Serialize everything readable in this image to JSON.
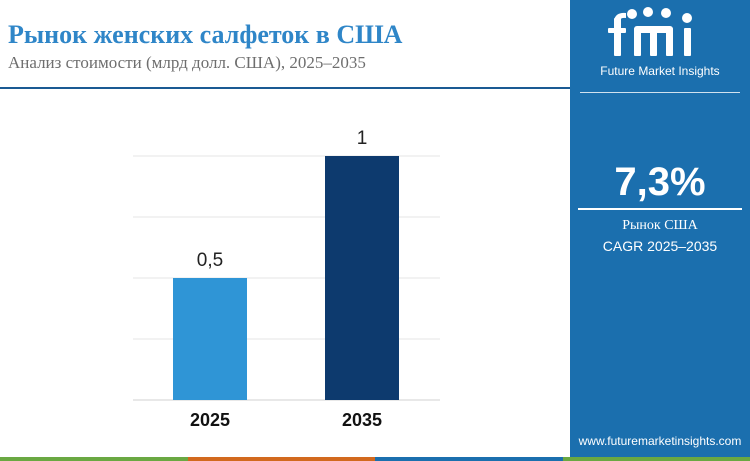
{
  "header": {
    "title": "Рынок женских салфеток в США",
    "subtitle": "Анализ стоимости (млрд долл. США), 2025–2035"
  },
  "brand": {
    "logo_text": "Future Market Insights",
    "url": "www.futuremarketinsights.com"
  },
  "kpi": {
    "cagr": "7,3%",
    "label_line1": "Рынок США",
    "label_line2": "CAGR 2025–2035"
  },
  "colors": {
    "accent": "#2f86c8",
    "sidebar": "#1b6fae",
    "bar_2025": "#2f95d6",
    "bar_2035": "#0d3a6e",
    "footer": [
      "#6aa842",
      "#d2691e",
      "#1b6fae",
      "#6aa842"
    ]
  },
  "chart_data": {
    "type": "bar",
    "title": "",
    "xlabel": "",
    "ylabel": "",
    "categories": [
      "2025",
      "2035"
    ],
    "values": [
      0.5,
      1
    ],
    "value_labels": [
      "0,5",
      "1"
    ],
    "ylim": [
      0,
      1.0
    ],
    "grid": true,
    "legend": "none"
  }
}
